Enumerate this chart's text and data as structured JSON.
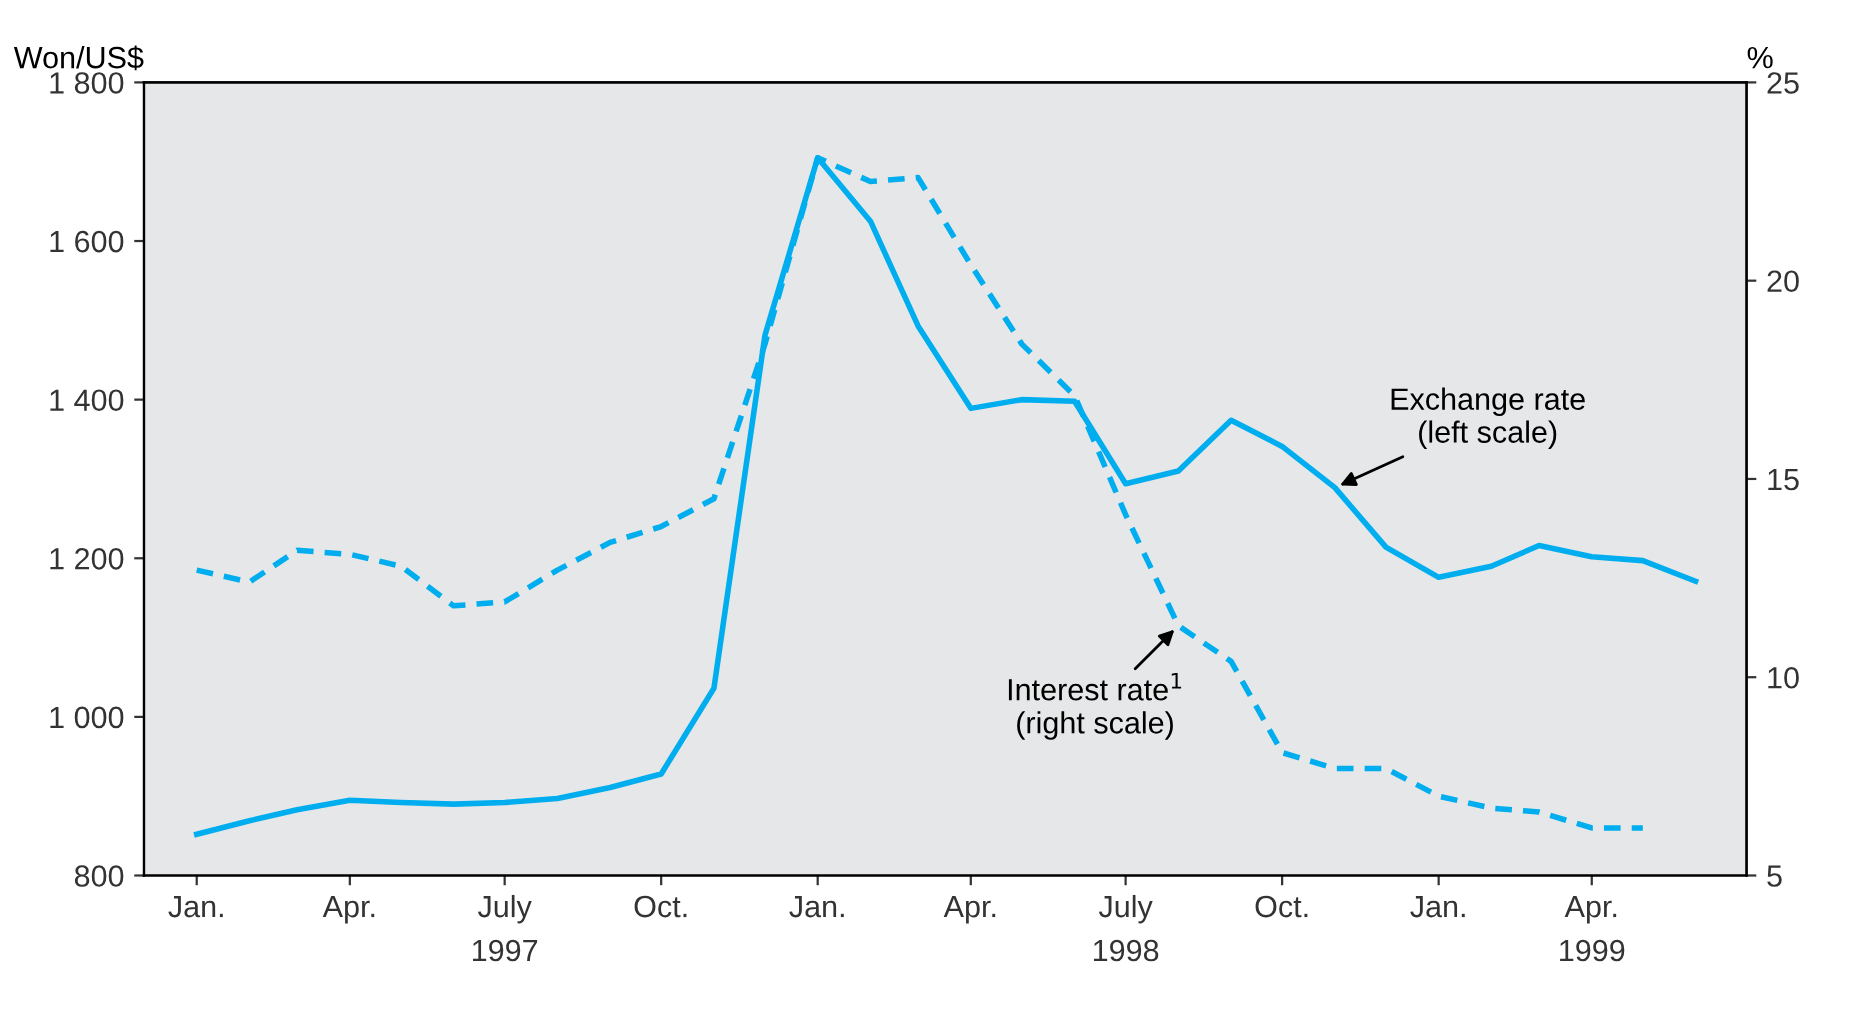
{
  "chart_data": {
    "type": "line",
    "ylabel": "Won/US$",
    "y2label": "%",
    "x": [
      "1997-01",
      "1997-02",
      "1997-03",
      "1997-04",
      "1997-05",
      "1997-06",
      "1997-07",
      "1997-08",
      "1997-09",
      "1997-10",
      "1997-11",
      "1997-12",
      "1998-01",
      "1998-02",
      "1998-03",
      "1998-04",
      "1998-05",
      "1998-06",
      "1998-07",
      "1998-08",
      "1998-09",
      "1998-10",
      "1998-11",
      "1998-12",
      "1999-01",
      "1999-02",
      "1999-03",
      "1999-04",
      "1999-05",
      "1999-06"
    ],
    "series": [
      {
        "color": "#00aeef",
        "line_style": "solid",
        "values": [
          852,
          869,
          883,
          895,
          892,
          890,
          892,
          897,
          911,
          928,
          1036,
          1481,
          1705,
          1625,
          1493,
          1389,
          1400,
          1398,
          1294,
          1310,
          1374,
          1341,
          1289,
          1214,
          1176,
          1190,
          1216,
          1202,
          1197,
          1171
        ]
      },
      {
        "color": "#00aeef",
        "line_style": "dashed",
        "axis": "y2",
        "values": [
          12.7,
          12.4,
          13.2,
          13.1,
          12.8,
          11.8,
          11.9,
          12.7,
          13.4,
          13.8,
          14.5,
          18.4,
          23.1,
          22.5,
          22.6,
          20.4,
          18.4,
          17.1,
          14.1,
          11.3,
          10.4,
          8.1,
          7.7,
          7.7,
          7.0,
          6.7,
          6.6,
          6.2,
          6.2,
          null
        ]
      }
    ],
    "xlim": [
      "1996-12",
      "1999-07"
    ],
    "xticks": [
      {
        "value": "1997-01",
        "label": "Jan."
      },
      {
        "value": "1997-04",
        "label": "Apr."
      },
      {
        "value": "1997-07",
        "label": "July\n1997"
      },
      {
        "value": "1997-10",
        "label": "Oct."
      },
      {
        "value": "1998-01",
        "label": "Jan."
      },
      {
        "value": "1998-04",
        "label": "Apr."
      },
      {
        "value": "1998-07",
        "label": "July\n1998"
      },
      {
        "value": "1998-10",
        "label": "Oct."
      },
      {
        "value": "1999-01",
        "label": "Jan."
      },
      {
        "value": "1999-04",
        "label": "Apr.\n1999"
      }
    ],
    "ylim": [
      800,
      1800
    ],
    "yticks": [
      {
        "value": 800,
        "label": "800"
      },
      {
        "value": 1000,
        "label": "1 000"
      },
      {
        "value": 1200,
        "label": "1 200"
      },
      {
        "value": 1400,
        "label": "1 400"
      },
      {
        "value": 1600,
        "label": "1 600"
      },
      {
        "value": 1800,
        "label": "1 800"
      }
    ],
    "y2lim": [
      5,
      25
    ],
    "y2ticks": [
      5,
      10,
      15,
      20,
      25
    ],
    "grid": false,
    "annotations": [
      {
        "text": "Exchange rate\n(left scale)",
        "x": "1998-11",
        "y": 1289
      },
      {
        "text": "Interest rate$^{1}$\n(right scale)",
        "x": "1998-08",
        "y": 1115
      }
    ]
  }
}
